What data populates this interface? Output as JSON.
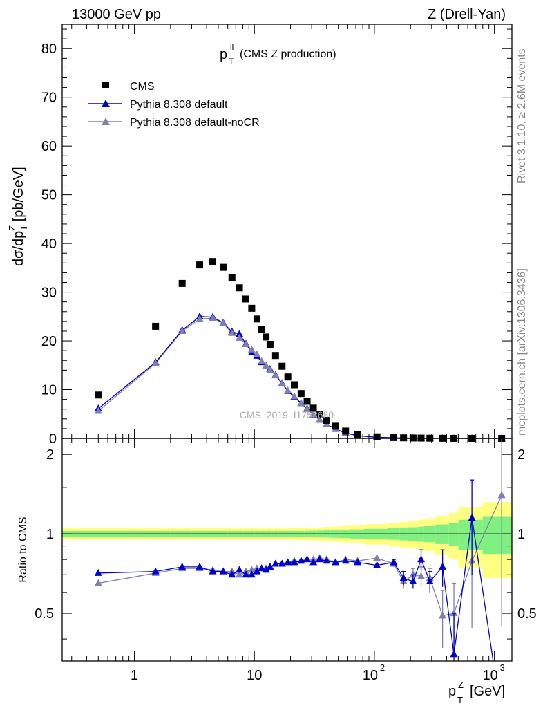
{
  "header": {
    "energy": "13000 GeV pp",
    "process": "Z (Drell-Yan)"
  },
  "side_text": {
    "rivet": "Rivet 3.1.10, ≥ 2.6M events",
    "mcplots": "mcplots.cern.ch [arXiv:1306.3436]"
  },
  "colors": {
    "cms": "#000000",
    "default": "#0000cc",
    "default_noCR": "#7f7fb2",
    "band_green": "#80f080",
    "band_yellow": "#ffff80",
    "watermark": "#aaaaaa"
  },
  "chart_data": [
    {
      "type": "scatter",
      "title": "p_T^ll (CMS Z production)",
      "title_main": "p",
      "title_sup": "ll",
      "title_sub": "T",
      "title_rest": "(CMS Z production)",
      "watermark": "CMS_2019_I1753680",
      "ylabel": "dσ/dp_T^Z [pb/GeV]",
      "xscale": "log",
      "xlim": [
        0.25,
        1400
      ],
      "ylim": [
        0,
        85
      ],
      "yticks": [
        0,
        10,
        20,
        30,
        40,
        50,
        60,
        70,
        80
      ],
      "legend_position": "top-left",
      "legend": [
        "CMS",
        "Pythia 8.308 default",
        "Pythia 8.308 default-noCR"
      ],
      "x": [
        0.5,
        1.5,
        2.5,
        3.5,
        4.5,
        5.5,
        6.5,
        7.5,
        8.5,
        9.5,
        10.5,
        11.5,
        12.5,
        13.5,
        15,
        17,
        19,
        21.5,
        24.5,
        27.5,
        31,
        35,
        40,
        47.5,
        57.5,
        72.5,
        105,
        145,
        175,
        210,
        245,
        290,
        370,
        460,
        650,
        1150
      ],
      "series": [
        {
          "name": "CMS",
          "marker": "square",
          "values": [
            8.9,
            23.0,
            31.8,
            35.6,
            36.3,
            35.1,
            33.0,
            30.9,
            28.6,
            26.7,
            24.5,
            22.3,
            20.8,
            19.3,
            17.0,
            14.8,
            12.6,
            11.0,
            9.2,
            7.6,
            6.2,
            4.9,
            3.7,
            2.5,
            1.5,
            0.75,
            0.32,
            0.16,
            0.11,
            0.08,
            0.06,
            0.04,
            0.02,
            0.01,
            0.004,
            0.001
          ]
        },
        {
          "name": "Pythia 8.308 default",
          "marker": "triangle",
          "values": [
            6.1,
            15.6,
            22.2,
            25.0,
            24.9,
            23.7,
            21.9,
            21.4,
            19.4,
            17.6,
            16.9,
            15.6,
            14.8,
            14.2,
            13.0,
            11.3,
            9.7,
            8.5,
            7.2,
            6.1,
            4.8,
            3.8,
            2.9,
            1.9,
            1.1,
            0.55,
            0.22,
            0.12,
            0.07,
            0.06,
            0.04,
            0.03,
            0.015,
            0.004,
            0.003,
            0.0
          ]
        },
        {
          "name": "Pythia 8.308 default-noCR",
          "marker": "triangle",
          "values": [
            5.6,
            15.4,
            22.0,
            24.5,
            24.7,
            23.6,
            21.6,
            20.6,
            19.3,
            18.2,
            17.2,
            15.8,
            14.9,
            14.0,
            12.9,
            11.2,
            9.8,
            8.6,
            7.2,
            6.0,
            4.9,
            3.8,
            2.9,
            1.9,
            1.1,
            0.55,
            0.23,
            0.12,
            0.07,
            0.06,
            0.04,
            0.03,
            0.01,
            0.005,
            0.002,
            0.0
          ]
        }
      ]
    },
    {
      "type": "scatter",
      "ylabel": "Ratio to CMS",
      "xlabel": "p_T^Z [GeV]",
      "xlabel_main": "p",
      "xlabel_sub": "T",
      "xlabel_sup": "Z",
      "xlabel_unit": "[GeV]",
      "xscale": "log",
      "xlim": [
        0.25,
        1400
      ],
      "ylim": [
        0.33,
        2.3
      ],
      "yscale": "log",
      "yticks": [
        0.5,
        1,
        2
      ],
      "xticks": [
        {
          "value": 1,
          "label": "1"
        },
        {
          "value": 10,
          "label": "10"
        },
        {
          "value": 100,
          "label": "10",
          "exp": "2"
        },
        {
          "value": 1000,
          "label": "10",
          "exp": "3"
        }
      ],
      "bins": [
        0.25,
        1,
        2,
        3,
        4,
        5,
        6,
        7,
        8,
        9,
        10,
        11,
        12,
        13,
        14,
        16,
        18,
        20,
        23,
        26,
        29,
        33,
        37,
        43,
        52,
        63,
        82,
        128,
        162,
        188,
        232,
        258,
        322,
        418,
        502,
        798,
        1400
      ],
      "band_green": [
        0.025,
        0.025,
        0.025,
        0.025,
        0.025,
        0.025,
        0.025,
        0.025,
        0.025,
        0.025,
        0.025,
        0.025,
        0.025,
        0.025,
        0.025,
        0.025,
        0.025,
        0.026,
        0.026,
        0.027,
        0.028,
        0.029,
        0.031,
        0.033,
        0.036,
        0.04,
        0.045,
        0.05,
        0.055,
        0.06,
        0.065,
        0.07,
        0.085,
        0.1,
        0.13,
        0.16
      ],
      "band_yellow": [
        0.05,
        0.05,
        0.05,
        0.05,
        0.05,
        0.05,
        0.05,
        0.05,
        0.05,
        0.05,
        0.05,
        0.05,
        0.05,
        0.05,
        0.05,
        0.05,
        0.05,
        0.052,
        0.053,
        0.054,
        0.056,
        0.058,
        0.062,
        0.066,
        0.072,
        0.08,
        0.09,
        0.1,
        0.11,
        0.12,
        0.13,
        0.14,
        0.17,
        0.2,
        0.26,
        0.32
      ],
      "series": [
        {
          "name": "Pythia 8.308 default",
          "values": [
            0.71,
            0.72,
            0.75,
            0.75,
            0.72,
            0.72,
            0.7,
            0.73,
            0.7,
            0.7,
            0.72,
            0.74,
            0.73,
            0.75,
            0.77,
            0.77,
            0.78,
            0.78,
            0.79,
            0.8,
            0.78,
            0.8,
            0.79,
            0.78,
            0.79,
            0.78,
            0.76,
            0.78,
            0.68,
            0.66,
            0.8,
            0.66,
            0.75,
            0.35,
            1.15,
            0.0
          ],
          "err": [
            0.01,
            0.01,
            0.01,
            0.01,
            0.01,
            0.01,
            0.01,
            0.01,
            0.01,
            0.01,
            0.01,
            0.01,
            0.01,
            0.01,
            0.01,
            0.01,
            0.01,
            0.01,
            0.01,
            0.01,
            0.01,
            0.01,
            0.01,
            0.01,
            0.01,
            0.01,
            0.01,
            0.02,
            0.04,
            0.04,
            0.07,
            0.06,
            0.12,
            0.15,
            0.45,
            0.0
          ]
        },
        {
          "name": "Pythia 8.308 default-noCR",
          "values": [
            0.65,
            0.71,
            0.74,
            0.74,
            0.73,
            0.72,
            0.72,
            0.7,
            0.72,
            0.73,
            0.74,
            0.74,
            0.74,
            0.75,
            0.77,
            0.77,
            0.78,
            0.79,
            0.79,
            0.8,
            0.8,
            0.81,
            0.8,
            0.78,
            0.8,
            0.79,
            0.81,
            0.77,
            0.66,
            0.7,
            0.69,
            0.68,
            0.49,
            0.5,
            0.79,
            1.4
          ],
          "err": [
            0.01,
            0.01,
            0.01,
            0.01,
            0.01,
            0.01,
            0.01,
            0.01,
            0.01,
            0.01,
            0.01,
            0.01,
            0.01,
            0.01,
            0.01,
            0.01,
            0.01,
            0.01,
            0.01,
            0.01,
            0.01,
            0.01,
            0.01,
            0.01,
            0.01,
            0.01,
            0.01,
            0.02,
            0.04,
            0.04,
            0.06,
            0.06,
            0.12,
            0.15,
            0.35,
            0.95
          ]
        }
      ]
    }
  ]
}
